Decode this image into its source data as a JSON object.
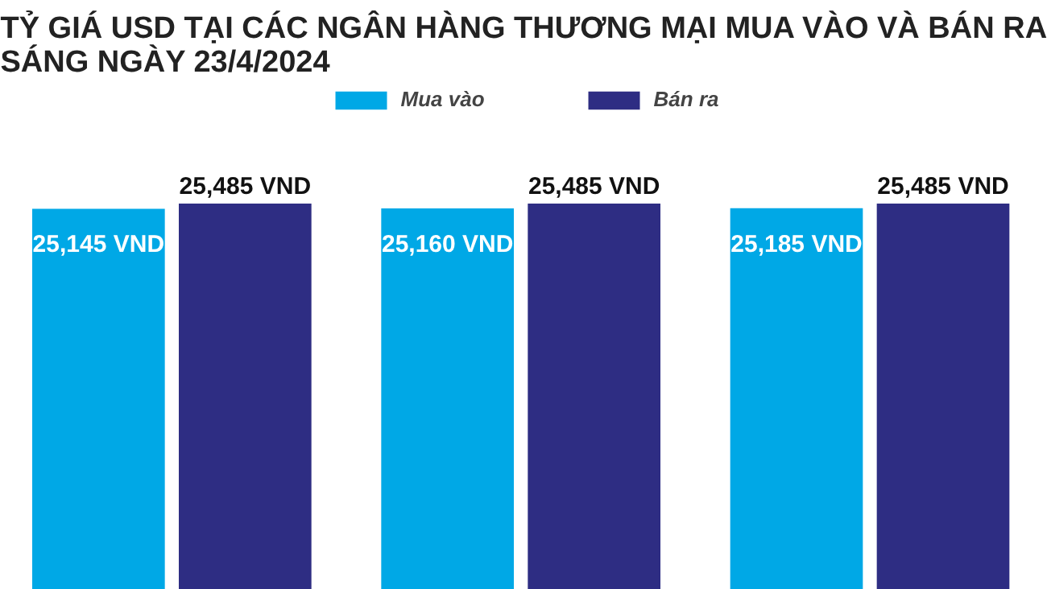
{
  "chart_data": {
    "type": "bar",
    "title": "TỶ GIÁ USD TẠI CÁC NGÂN HÀNG THƯƠNG MẠI MUA VÀO VÀ BÁN RA SÁNG NGÀY 23/4/2024",
    "categories": [
      null,
      null,
      null
    ],
    "series": [
      {
        "name": "Mua vào",
        "color": "#00a8e6",
        "values": [
          25145,
          25160,
          25185
        ],
        "value_labels": [
          "25,145 VND",
          "25,160 VND",
          "25,185 VND"
        ]
      },
      {
        "name": "Bán ra",
        "color": "#2e2d83",
        "values": [
          25485,
          25485,
          25485
        ],
        "value_labels": [
          "25,485 VND",
          "25,485 VND",
          "25,485 VND"
        ]
      }
    ],
    "legend": "top",
    "tick_labels": false
  }
}
